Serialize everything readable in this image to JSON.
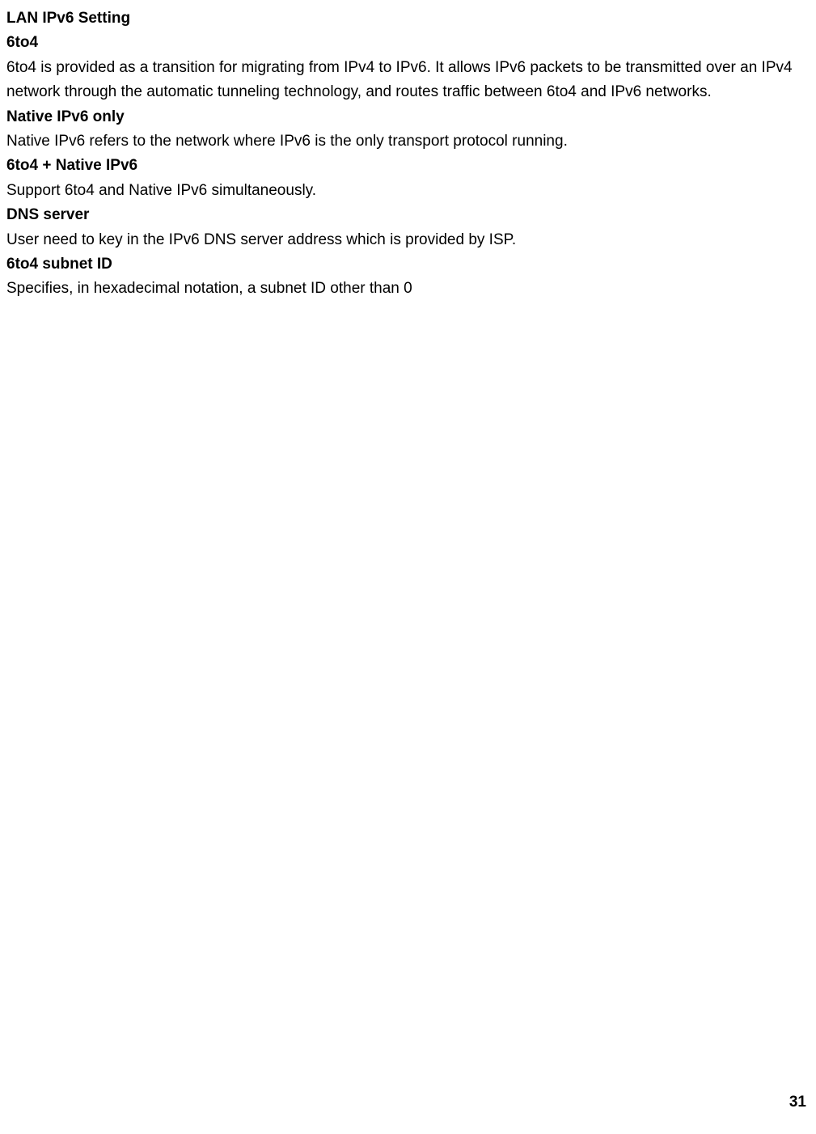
{
  "page": {
    "background_color": "#ffffff",
    "text_color": "#000000",
    "font_family": "Arial",
    "body_fontsize": 19,
    "heading_fontweight": "bold",
    "line_height": 1.6
  },
  "sections": {
    "lan_ipv6_setting": "LAN IPv6 Setting",
    "sixto4_heading": "6to4",
    "sixto4_body": "6to4 is provided as a transition for migrating from IPv4 to IPv6. It allows IPv6 packets to be transmitted over an IPv4 network through the automatic tunneling technology, and routes traffic between 6to4 and IPv6 networks.",
    "native_ipv6_only_heading": "Native IPv6 only",
    "native_ipv6_only_body": "Native IPv6 refers to the network where IPv6 is the only transport protocol running.",
    "sixto4_native_heading": "6to4 + Native IPv6",
    "sixto4_native_body": "Support 6to4 and Native IPv6 simultaneously.",
    "dns_server_heading": "DNS server",
    "dns_server_body": "User need to key in the IPv6 DNS server address which is provided by ISP.",
    "sixto4_subnet_heading": "6to4 subnet ID",
    "sixto4_subnet_body": "Specifies, in hexadecimal notation, a subnet ID other than 0"
  },
  "page_number": "31"
}
